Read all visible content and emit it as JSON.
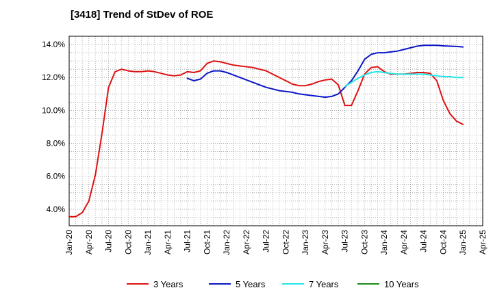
{
  "chart_data": {
    "type": "line",
    "title": "[3418]  Trend of StDev of ROE",
    "xlabel": "",
    "ylabel": "",
    "x_ticks": [
      "Jan-20",
      "Apr-20",
      "Jul-20",
      "Oct-20",
      "Jan-21",
      "Apr-21",
      "Jul-21",
      "Oct-21",
      "Jan-22",
      "Apr-22",
      "Jul-22",
      "Oct-22",
      "Jan-23",
      "Apr-23",
      "Jul-23",
      "Oct-23",
      "Jan-24",
      "Apr-24",
      "Jul-24",
      "Oct-24",
      "Jan-25",
      "Apr-25"
    ],
    "y_ticks": [
      "4.0%",
      "6.0%",
      "8.0%",
      "10.0%",
      "12.0%",
      "14.0%"
    ],
    "y_tick_values": [
      4,
      6,
      8,
      10,
      12,
      14
    ],
    "ylim": [
      3,
      14.5
    ],
    "xlim": [
      "Jan-20",
      "Apr-25"
    ],
    "grid": true,
    "legend_position": "bottom",
    "series": [
      {
        "name": "3 Years",
        "color": "#dd1111",
        "x": [
          "Jan-20",
          "Feb-20",
          "Mar-20",
          "Apr-20",
          "May-20",
          "Jun-20",
          "Jul-20",
          "Aug-20",
          "Sep-20",
          "Oct-20",
          "Nov-20",
          "Dec-20",
          "Jan-21",
          "Feb-21",
          "Mar-21",
          "Apr-21",
          "May-21",
          "Jun-21",
          "Jul-21",
          "Aug-21",
          "Sep-21",
          "Oct-21",
          "Nov-21",
          "Dec-21",
          "Jan-22",
          "Feb-22",
          "Mar-22",
          "Apr-22",
          "May-22",
          "Jun-22",
          "Jul-22",
          "Aug-22",
          "Sep-22",
          "Oct-22",
          "Nov-22",
          "Dec-22",
          "Jan-23",
          "Feb-23",
          "Mar-23",
          "Apr-23",
          "May-23",
          "Jun-23",
          "Jul-23",
          "Aug-23",
          "Sep-23",
          "Oct-23",
          "Nov-23",
          "Dec-23",
          "Jan-24",
          "Feb-24",
          "Mar-24",
          "Apr-24",
          "May-24",
          "Jun-24",
          "Jul-24",
          "Aug-24",
          "Sep-24",
          "Oct-24",
          "Nov-24",
          "Dec-24",
          "Jan-25"
        ],
        "values": [
          3.55,
          3.55,
          3.8,
          4.5,
          6.1,
          8.6,
          11.4,
          12.35,
          12.5,
          12.4,
          12.35,
          12.35,
          12.4,
          12.35,
          12.25,
          12.15,
          12.1,
          12.15,
          12.35,
          12.3,
          12.4,
          12.85,
          13.0,
          12.95,
          12.85,
          12.75,
          12.7,
          12.65,
          12.6,
          12.5,
          12.4,
          12.2,
          12.0,
          11.8,
          11.6,
          11.5,
          11.5,
          11.6,
          11.75,
          11.85,
          11.9,
          11.55,
          10.3,
          10.3,
          11.2,
          12.2,
          12.6,
          12.65,
          12.35,
          12.2,
          12.2,
          12.2,
          12.25,
          12.3,
          12.3,
          12.25,
          11.8,
          10.6,
          9.8,
          9.35,
          9.15
        ]
      },
      {
        "name": "5 Years",
        "color": "#0a14c8",
        "x": [
          "Jul-21",
          "Aug-21",
          "Sep-21",
          "Oct-21",
          "Nov-21",
          "Dec-21",
          "Jan-22",
          "Feb-22",
          "Mar-22",
          "Apr-22",
          "May-22",
          "Jun-22",
          "Jul-22",
          "Aug-22",
          "Sep-22",
          "Oct-22",
          "Nov-22",
          "Dec-22",
          "Jan-23",
          "Feb-23",
          "Mar-23",
          "Apr-23",
          "May-23",
          "Jun-23",
          "Jul-23",
          "Aug-23",
          "Sep-23",
          "Oct-23",
          "Nov-23",
          "Dec-23",
          "Jan-24",
          "Feb-24",
          "Mar-24",
          "Apr-24",
          "May-24",
          "Jun-24",
          "Jul-24",
          "Aug-24",
          "Sep-24",
          "Oct-24",
          "Nov-24",
          "Dec-24",
          "Jan-25"
        ],
        "values": [
          11.95,
          11.8,
          11.9,
          12.25,
          12.4,
          12.4,
          12.3,
          12.15,
          12.0,
          11.85,
          11.7,
          11.55,
          11.4,
          11.3,
          11.2,
          11.15,
          11.1,
          11.0,
          10.95,
          10.9,
          10.85,
          10.8,
          10.85,
          11.0,
          11.4,
          11.8,
          12.4,
          13.1,
          13.4,
          13.5,
          13.5,
          13.55,
          13.6,
          13.7,
          13.8,
          13.9,
          13.95,
          13.95,
          13.95,
          13.92,
          13.9,
          13.88,
          13.85
        ]
      },
      {
        "name": "7 Years",
        "color": "#22e6e6",
        "x": [
          "Jul-23",
          "Aug-23",
          "Sep-23",
          "Oct-23",
          "Nov-23",
          "Dec-23",
          "Jan-24",
          "Feb-24",
          "Mar-24",
          "Apr-24",
          "May-24",
          "Jun-24",
          "Jul-24",
          "Aug-24",
          "Sep-24",
          "Oct-24",
          "Nov-24",
          "Dec-24",
          "Jan-25"
        ],
        "values": [
          11.45,
          11.7,
          11.95,
          12.15,
          12.3,
          12.35,
          12.3,
          12.25,
          12.2,
          12.2,
          12.2,
          12.2,
          12.2,
          12.15,
          12.1,
          12.05,
          12.05,
          12.0,
          12.0
        ]
      },
      {
        "name": "10 Years",
        "color": "#1a8a1a",
        "x": [],
        "values": []
      }
    ]
  }
}
